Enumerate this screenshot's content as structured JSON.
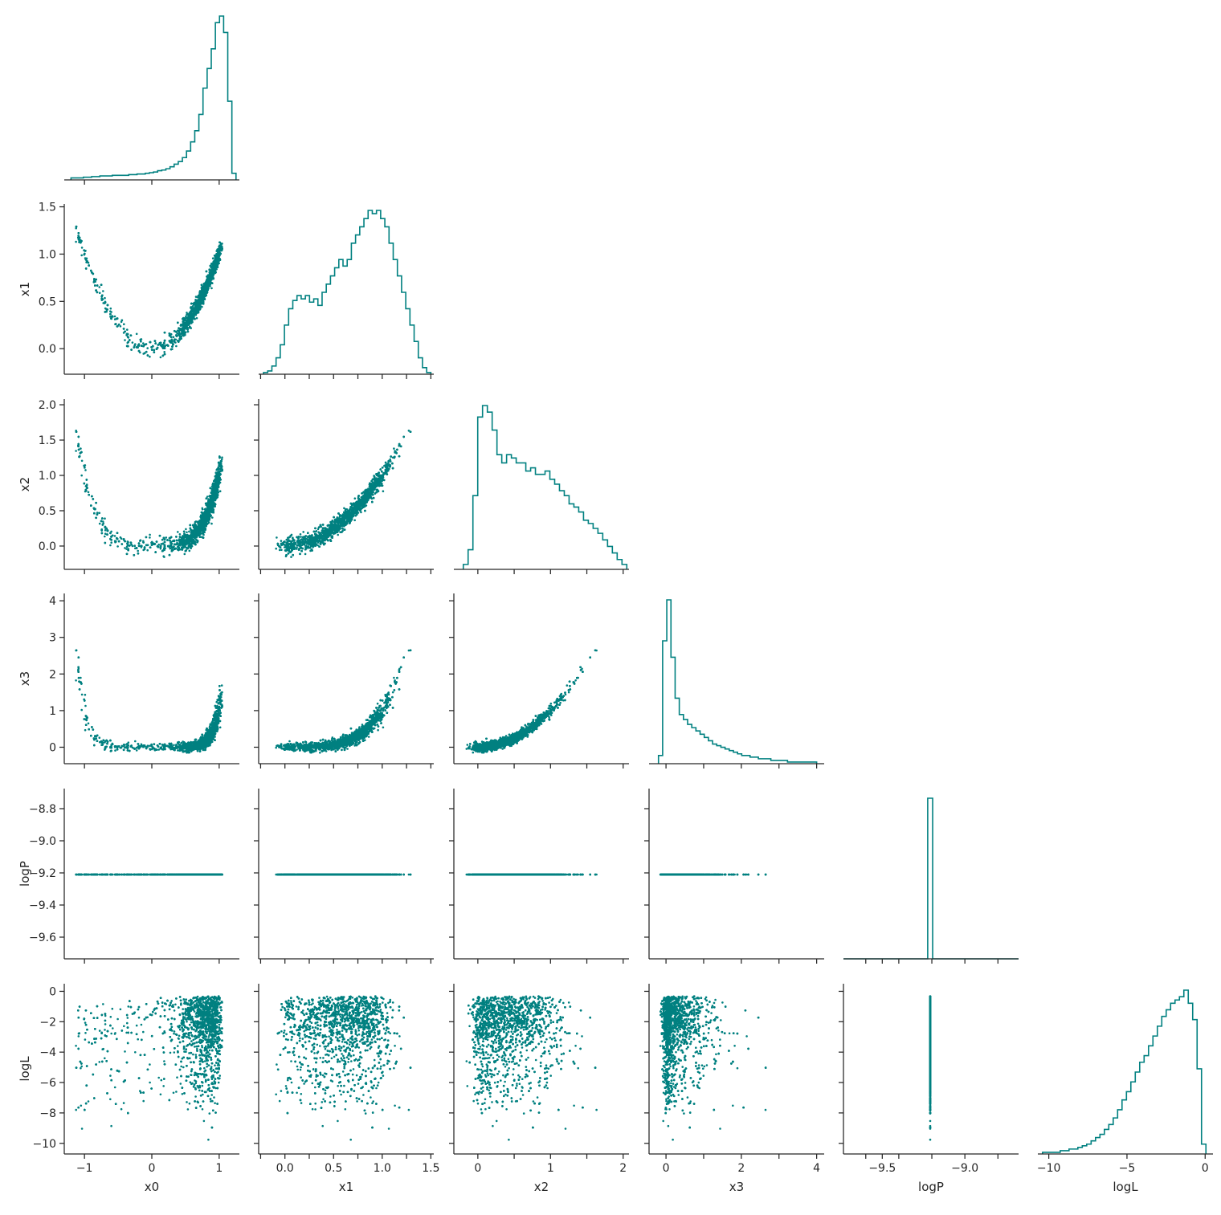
{
  "chart_data": {
    "type": "corner",
    "subtype": "pairplot-scatter-histogram",
    "color": "#008080",
    "variables": [
      "x0",
      "x1",
      "x2",
      "x3",
      "logP",
      "logL"
    ],
    "axes": {
      "x0": {
        "range": [
          -1.3,
          1.3
        ],
        "ticks": [
          -1,
          0,
          1
        ],
        "tick_labels": [
          "−1",
          "0",
          "1"
        ]
      },
      "x1": {
        "range": [
          -0.27,
          1.53
        ],
        "ticks": [
          -0.25,
          0,
          0.25,
          0.5,
          0.75,
          1,
          1.25,
          1.5
        ],
        "tick_labels": [
          "",
          "0.0",
          "",
          "0.5",
          "",
          "1.0",
          "",
          "1.5"
        ]
      },
      "x2": {
        "range": [
          -0.33,
          2.08
        ],
        "ticks": [
          -0.5,
          0,
          0.5,
          1,
          1.5,
          2
        ],
        "tick_labels": [
          "",
          "0",
          "",
          "1",
          "",
          "2"
        ]
      },
      "x3": {
        "range": [
          -0.45,
          4.2
        ],
        "ticks": [
          0,
          1,
          2,
          3,
          4
        ],
        "tick_labels": [
          "0",
          "",
          "2",
          "",
          "4"
        ]
      },
      "logP": {
        "range": [
          -9.735,
          -8.675
        ],
        "ticks": [
          -9.6,
          -9.5,
          -9.4,
          -9.2,
          -9.0,
          -8.8
        ],
        "tick_labels": [
          "",
          "−9.5",
          "",
          "",
          "−9.0",
          ""
        ]
      },
      "logL": {
        "range": [
          -10.7,
          0.5
        ],
        "ticks": [
          -10,
          -5,
          0
        ],
        "tick_labels": [
          "−10",
          "−5",
          "0"
        ]
      }
    },
    "y_axes": {
      "x1": {
        "ticks": [
          0,
          0.5,
          1,
          1.5
        ],
        "tick_labels": [
          "0.0",
          "0.5",
          "1.0",
          "1.5"
        ]
      },
      "x2": {
        "ticks": [
          0,
          0.5,
          1,
          1.5,
          2
        ],
        "tick_labels": [
          "0.0",
          "0.5",
          "1.0",
          "1.5",
          "2.0"
        ]
      },
      "x3": {
        "ticks": [
          0,
          1,
          2,
          3,
          4
        ],
        "tick_labels": [
          "0",
          "1",
          "2",
          "3",
          "4"
        ]
      },
      "logP": {
        "ticks": [
          -9.6,
          -9.4,
          -9.2,
          -9.0,
          -8.8
        ],
        "tick_labels": [
          "−9.6",
          "−9.4",
          "−9.2",
          "−9.0",
          "−8.8"
        ]
      },
      "logL": {
        "ticks": [
          -10,
          -8,
          -6,
          -4,
          -2,
          0
        ],
        "tick_labels": [
          "−10",
          "−8",
          "−6",
          "−4",
          "−2",
          "0"
        ]
      }
    },
    "constant_value": {
      "logP": -9.21
    },
    "histograms": {
      "x0": {
        "min": -1.2,
        "max": 1.25,
        "counts": [
          3,
          3,
          3,
          4,
          4,
          5,
          5,
          6,
          6,
          6,
          7,
          7,
          7,
          7,
          8,
          8,
          9,
          9,
          10,
          11,
          12,
          14,
          15,
          17,
          20,
          24,
          28,
          34,
          44,
          58,
          75,
          100,
          140,
          170,
          200,
          240,
          250,
          225,
          120,
          10
        ]
      },
      "x1": {
        "min": -0.22,
        "max": 1.5,
        "counts": [
          1,
          2,
          5,
          10,
          18,
          30,
          40,
          45,
          48,
          46,
          48,
          44,
          46,
          42,
          50,
          55,
          60,
          65,
          70,
          66,
          70,
          80,
          85,
          90,
          95,
          100,
          98,
          100,
          95,
          90,
          80,
          70,
          60,
          50,
          40,
          30,
          20,
          10,
          4,
          1
        ]
      },
      "x2": {
        "min": -0.2,
        "max": 2.05,
        "counts": [
          3,
          12,
          45,
          93,
          100,
          96,
          85,
          70,
          65,
          70,
          68,
          65,
          65,
          60,
          62,
          58,
          58,
          60,
          55,
          52,
          48,
          45,
          40,
          38,
          35,
          30,
          28,
          25,
          22,
          18,
          14,
          10,
          6,
          3
        ]
      },
      "x3": {
        "min": -0.2,
        "max": 4.0,
        "counts": [
          5,
          75,
          100,
          65,
          40,
          30,
          27,
          24,
          22,
          20,
          18,
          16,
          14,
          12,
          11,
          10,
          9,
          8,
          7,
          6,
          5,
          5,
          4,
          4,
          3,
          3,
          3,
          2,
          2,
          2,
          2,
          1,
          1,
          1,
          1,
          1,
          1,
          1
        ]
      },
      "logP": {
        "min": -9.735,
        "max": -8.675,
        "bins": [
          {
            "x0": -9.225,
            "x1": -9.195,
            "count": 100
          }
        ]
      },
      "logL": {
        "min": -10.4,
        "max": 0.05,
        "counts": [
          1,
          1,
          1,
          1,
          2,
          2,
          3,
          3,
          4,
          5,
          6,
          8,
          10,
          12,
          15,
          18,
          22,
          27,
          33,
          38,
          44,
          50,
          56,
          60,
          66,
          72,
          78,
          84,
          88,
          92,
          94,
          96,
          100,
          92,
          82,
          52,
          6
        ]
      }
    }
  }
}
